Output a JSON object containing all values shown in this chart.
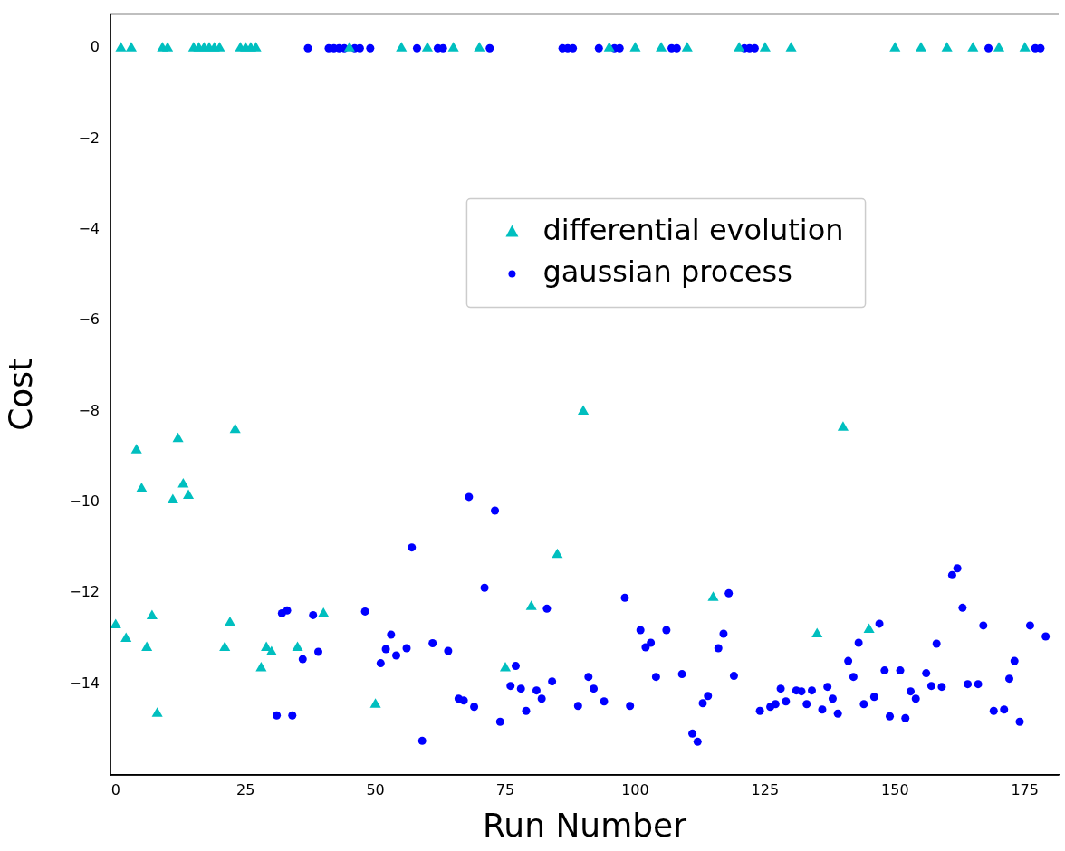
{
  "chart_data": {
    "type": "scatter",
    "xlabel": "Run Number",
    "ylabel": "Cost",
    "xlim": [
      -1,
      181.5
    ],
    "ylim": [
      -16,
      0.75
    ],
    "xticks": [
      0,
      25,
      50,
      75,
      100,
      125,
      150,
      175
    ],
    "yticks": [
      -14,
      -12,
      -10,
      -8,
      -6,
      -4,
      -2,
      0
    ],
    "grid": false,
    "legend": "top",
    "series": [
      {
        "name": "differential evolution",
        "color": "#00bfbf",
        "marker": "triangle",
        "x": [
          0,
          1,
          2,
          3,
          4,
          5,
          6,
          7,
          8,
          9,
          10,
          11,
          12,
          13,
          14,
          15,
          16,
          17,
          18,
          19,
          20,
          21,
          22,
          23,
          24,
          25,
          26,
          27,
          28,
          29,
          30,
          35,
          40,
          45,
          50,
          55,
          60,
          65,
          70,
          75,
          80,
          85,
          90,
          95,
          100,
          105,
          110,
          115,
          120,
          125,
          130,
          135,
          140,
          145,
          150,
          155,
          160,
          165,
          170,
          175
        ],
        "values": [
          -12.7,
          0,
          -13.0,
          0,
          -8.85,
          -9.7,
          -13.2,
          -12.5,
          -14.65,
          0,
          0,
          -9.95,
          -8.6,
          -9.6,
          -9.85,
          0,
          0,
          0,
          0,
          0,
          0,
          -13.2,
          -12.65,
          -8.4,
          0,
          0,
          0,
          0,
          -13.65,
          -13.2,
          -13.3,
          -13.2,
          -12.45,
          0,
          -14.45,
          0,
          0,
          0,
          0,
          -13.65,
          -12.3,
          -11.15,
          -8.0,
          0,
          0,
          0,
          0,
          -12.1,
          0,
          0,
          0,
          -12.9,
          -8.35,
          -12.8,
          0,
          0,
          0,
          0,
          0,
          0
        ]
      },
      {
        "name": "gaussian process",
        "color": "#0000ff",
        "marker": "circle",
        "x": [
          31,
          32,
          33,
          34,
          36,
          37,
          38,
          39,
          41,
          42,
          43,
          44,
          46,
          47,
          48,
          49,
          51,
          52,
          53,
          54,
          56,
          57,
          58,
          59,
          61,
          62,
          63,
          64,
          66,
          67,
          68,
          69,
          71,
          72,
          73,
          74,
          76,
          77,
          78,
          79,
          81,
          82,
          83,
          84,
          86,
          87,
          88,
          89,
          91,
          92,
          93,
          94,
          96,
          97,
          98,
          99,
          101,
          102,
          103,
          104,
          106,
          107,
          108,
          109,
          111,
          112,
          113,
          114,
          116,
          117,
          118,
          119,
          121,
          122,
          123,
          124,
          126,
          127,
          128,
          129,
          131,
          132,
          133,
          134,
          136,
          137,
          138,
          139,
          141,
          142,
          143,
          144,
          146,
          147,
          148,
          149,
          151,
          152,
          153,
          154,
          156,
          157,
          158,
          159,
          161,
          162,
          163,
          164,
          166,
          167,
          168,
          169,
          171,
          172,
          173,
          174,
          176,
          177,
          178,
          179
        ],
        "values": [
          -14.69,
          -12.44,
          -12.38,
          -14.69,
          -13.45,
          0,
          -12.48,
          -13.29,
          0,
          0,
          0,
          0,
          0,
          0,
          -12.4,
          0,
          -13.54,
          -13.23,
          -12.91,
          -13.37,
          -13.21,
          -10.99,
          0,
          -15.25,
          -13.1,
          0,
          0,
          -13.27,
          -14.32,
          -14.36,
          -9.88,
          -14.5,
          -11.88,
          0,
          -10.18,
          -14.83,
          -14.04,
          -13.6,
          -14.1,
          -14.59,
          -14.14,
          -14.32,
          -12.34,
          -13.94,
          0,
          0,
          0,
          -14.48,
          -13.84,
          -14.1,
          0,
          -14.38,
          0,
          0,
          -12.1,
          -14.48,
          -12.81,
          -13.19,
          -13.09,
          -13.84,
          -12.81,
          0,
          0,
          -13.78,
          -15.09,
          -15.27,
          -14.42,
          -14.26,
          -13.21,
          -12.89,
          -12.0,
          -13.82,
          0,
          0,
          0,
          -14.59,
          -14.5,
          -14.44,
          -14.1,
          -14.38,
          -14.14,
          -14.16,
          -14.44,
          -14.14,
          -14.56,
          -14.06,
          -14.32,
          -14.65,
          -13.49,
          -13.84,
          -13.09,
          -14.44,
          -14.28,
          -12.67,
          -13.7,
          -14.71,
          -13.7,
          -14.75,
          -14.16,
          -14.32,
          -13.76,
          -14.04,
          -13.11,
          -14.06,
          -11.6,
          -11.45,
          -12.32,
          -14.0,
          -14.0,
          -12.71,
          0,
          -14.59,
          -14.56,
          -13.88,
          -13.49,
          -14.83,
          -12.71,
          0,
          0,
          -12.95
        ]
      }
    ]
  }
}
